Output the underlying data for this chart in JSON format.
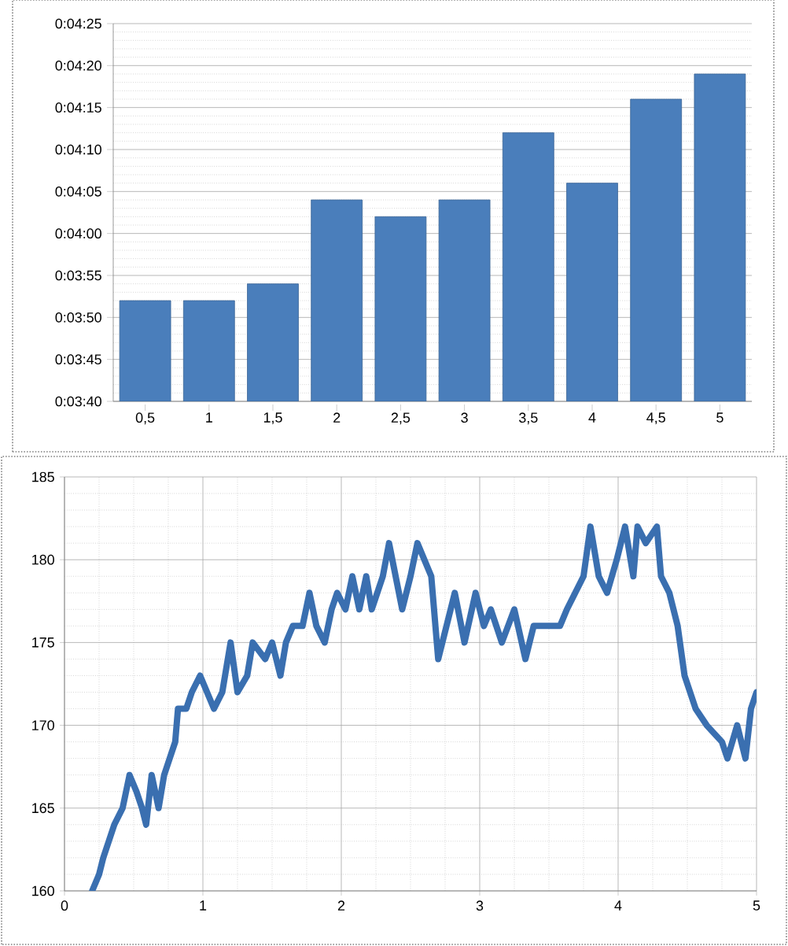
{
  "chart_data": [
    {
      "type": "bar",
      "categories": [
        "0,5",
        "1",
        "1,5",
        "2",
        "2,5",
        "3",
        "3,5",
        "4",
        "4,5",
        "5"
      ],
      "values": [
        232,
        232,
        234,
        244,
        242,
        244,
        252,
        246,
        256,
        259
      ],
      "color": "#4a7ebb",
      "ylim": [
        220,
        265
      ],
      "yticks": [
        {
          "value": 220,
          "label": "0:03:40"
        },
        {
          "value": 225,
          "label": "0:03:45"
        },
        {
          "value": 230,
          "label": "0:03:50"
        },
        {
          "value": 235,
          "label": "0:03:55"
        },
        {
          "value": 240,
          "label": "0:04:00"
        },
        {
          "value": 245,
          "label": "0:04:05"
        },
        {
          "value": 250,
          "label": "0:04:10"
        },
        {
          "value": 255,
          "label": "0:04:15"
        },
        {
          "value": 260,
          "label": "0:04:20"
        },
        {
          "value": 265,
          "label": "0:04:25"
        }
      ],
      "grid": "y"
    },
    {
      "type": "line",
      "color": "#3a6fb0",
      "xlim": [
        0,
        5
      ],
      "ylim": [
        160,
        185
      ],
      "xticks": [
        0,
        1,
        2,
        3,
        4,
        5
      ],
      "yticks": [
        160,
        165,
        170,
        175,
        180,
        185
      ],
      "grid": true,
      "x": [
        0.2,
        0.25,
        0.28,
        0.32,
        0.36,
        0.42,
        0.47,
        0.52,
        0.56,
        0.59,
        0.63,
        0.68,
        0.72,
        0.76,
        0.8,
        0.82,
        0.88,
        0.92,
        0.98,
        1.03,
        1.08,
        1.14,
        1.2,
        1.25,
        1.32,
        1.36,
        1.45,
        1.5,
        1.56,
        1.6,
        1.65,
        1.72,
        1.77,
        1.82,
        1.88,
        1.93,
        1.97,
        2.03,
        2.08,
        2.13,
        2.18,
        2.22,
        2.3,
        2.345,
        2.44,
        2.5,
        2.55,
        2.65,
        2.7,
        2.76,
        2.82,
        2.89,
        2.97,
        3.03,
        3.08,
        3.16,
        3.25,
        3.33,
        3.39,
        3.58,
        3.63,
        3.75,
        3.8,
        3.86,
        3.92,
        3.99,
        4.05,
        4.11,
        4.14,
        4.2,
        4.28,
        4.31,
        4.37,
        4.43,
        4.48,
        4.56,
        4.64,
        4.75,
        4.79,
        4.86,
        4.92,
        4.96,
        5.0
      ],
      "values": [
        160,
        161,
        162,
        163,
        164,
        165,
        167,
        166,
        165,
        164,
        167,
        165,
        167,
        168,
        169,
        171,
        171,
        172,
        173,
        172,
        171,
        172,
        175,
        172,
        173,
        175,
        174,
        175,
        173,
        175,
        176,
        176,
        178,
        176,
        175,
        177,
        178,
        177,
        179,
        177,
        179,
        177,
        179,
        181,
        177,
        179,
        181,
        179,
        174,
        176,
        178,
        175,
        178,
        176,
        177,
        175,
        177,
        174,
        176,
        176,
        177,
        179,
        182,
        179,
        178,
        180,
        182,
        179,
        182,
        181,
        182,
        179,
        178,
        176,
        173,
        171,
        170,
        169,
        168,
        170,
        168,
        171,
        172
      ]
    }
  ]
}
